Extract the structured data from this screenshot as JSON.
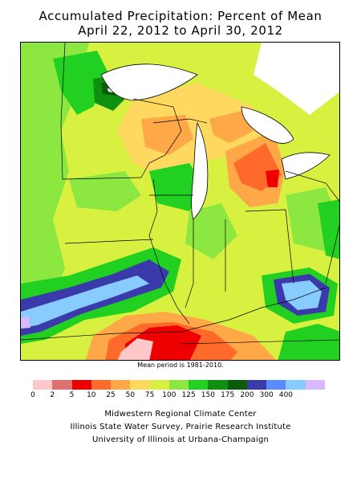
{
  "title": {
    "line1": "Accumulated Precipitation: Percent of Mean",
    "line2": "April 22, 2012 to April 30, 2012"
  },
  "map": {
    "note": "Mean period is 1981-2010.",
    "legend": {
      "colors": [
        "#ffc8c8",
        "#e07070",
        "#ee0000",
        "#ff6a2a",
        "#ffa848",
        "#ffd860",
        "#d8f040",
        "#8ce840",
        "#22d022",
        "#109010",
        "#0a5c0a",
        "#3a3aaa",
        "#5a8aff",
        "#88ccff",
        "#d8b8ff"
      ],
      "ticks": [
        "0",
        "2",
        "5",
        "10",
        "25",
        "50",
        "75",
        "100",
        "125",
        "150",
        "175",
        "200",
        "300",
        "400"
      ]
    }
  },
  "credits": {
    "line1": "Midwestern Regional Climate Center",
    "line2": "Illinois State Water Survey, Prairie Research Institute",
    "line3": "University of Illinois at Urbana-Champaign"
  }
}
